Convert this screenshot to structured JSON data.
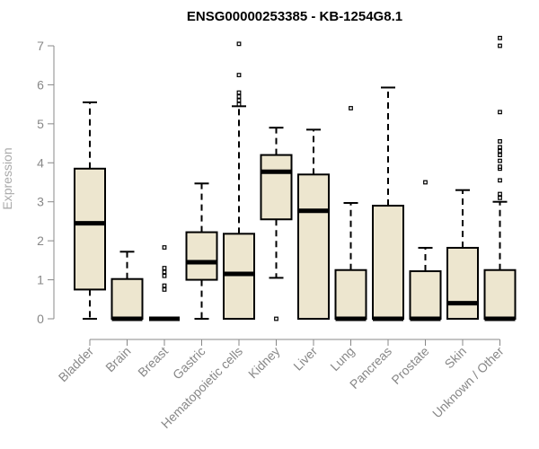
{
  "chart_data": {
    "type": "box",
    "title": "ENSG00000253385 - KB-1254G8.1",
    "ylabel": "Expression",
    "xlabel": "",
    "ylim": [
      0,
      7
    ],
    "yticks": [
      "0",
      "1",
      "2",
      "3",
      "4",
      "5",
      "6",
      "7"
    ],
    "grid": false,
    "colors": {
      "box_fill": "#ede6cf",
      "stroke": "#000000",
      "axis": "#888888",
      "tick_text": "#888888"
    },
    "categories": [
      "Bladder",
      "Brain",
      "Breast",
      "Gastric",
      "Hematopoietic cells",
      "Kidney",
      "Liver",
      "Lung",
      "Pancreas",
      "Prostate",
      "Skin",
      "Unknown / Other"
    ],
    "boxes": [
      {
        "category": "Bladder",
        "min": 0,
        "q1": 0.75,
        "median": 2.45,
        "q3": 3.85,
        "max": 5.55,
        "outliers": []
      },
      {
        "category": "Brain",
        "min": 0,
        "q1": 0,
        "median": 0,
        "q3": 1.02,
        "max": 1.72,
        "outliers": []
      },
      {
        "category": "Breast",
        "min": 0,
        "q1": 0,
        "median": 0,
        "q3": 0,
        "max": 0,
        "outliers": [
          0.75,
          0.85,
          1.1,
          1.2,
          1.3,
          1.83
        ]
      },
      {
        "category": "Gastric",
        "min": 0,
        "q1": 1.0,
        "median": 1.45,
        "q3": 2.22,
        "max": 3.47,
        "outliers": []
      },
      {
        "category": "Hematopoietic cells",
        "min": 0,
        "q1": 0,
        "median": 1.15,
        "q3": 2.18,
        "max": 5.45,
        "outliers": [
          5.5,
          5.6,
          5.7,
          5.8,
          6.25,
          7.05
        ]
      },
      {
        "category": "Kidney",
        "min": 1.05,
        "q1": 2.55,
        "median": 3.77,
        "q3": 4.2,
        "max": 4.9,
        "outliers": [
          0
        ]
      },
      {
        "category": "Liver",
        "min": 0,
        "q1": 0,
        "median": 2.77,
        "q3": 3.7,
        "max": 4.85,
        "outliers": []
      },
      {
        "category": "Lung",
        "min": 0,
        "q1": 0,
        "median": 0,
        "q3": 1.25,
        "max": 2.97,
        "outliers": [
          5.4
        ]
      },
      {
        "category": "Pancreas",
        "min": 0,
        "q1": 0,
        "median": 0,
        "q3": 2.9,
        "max": 5.93,
        "outliers": []
      },
      {
        "category": "Prostate",
        "min": 0,
        "q1": 0,
        "median": 0,
        "q3": 1.22,
        "max": 1.82,
        "outliers": [
          3.5
        ]
      },
      {
        "category": "Skin",
        "min": 0,
        "q1": 0,
        "median": 0.4,
        "q3": 1.82,
        "max": 3.3,
        "outliers": []
      },
      {
        "category": "Unknown / Other",
        "min": 0,
        "q1": 0,
        "median": 0,
        "q3": 1.25,
        "max": 3.0,
        "outliers": [
          3.1,
          3.2,
          3.55,
          3.85,
          3.9,
          4.05,
          4.2,
          4.3,
          4.4,
          4.55,
          5.3,
          7.0,
          7.2
        ]
      }
    ]
  }
}
